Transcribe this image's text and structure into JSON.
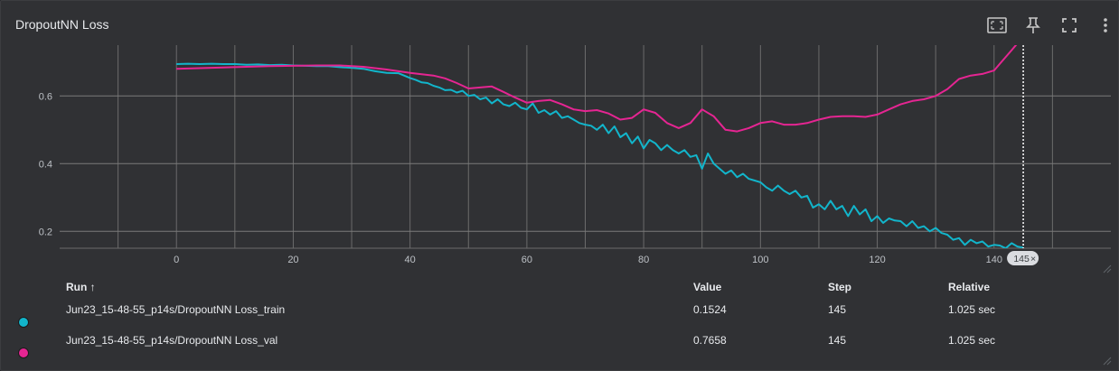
{
  "panel": {
    "title": "DropoutNN Loss",
    "toolbar": {
      "fit_icon": "fit-domain-icon",
      "pin_icon": "pin-icon",
      "fullscreen_icon": "fullscreen-icon",
      "more_icon": "more-vert-icon"
    }
  },
  "hover": {
    "step_label": "145",
    "close_glyph": "×"
  },
  "table": {
    "headers": {
      "run": "Run ↑",
      "value": "Value",
      "step": "Step",
      "relative": "Relative"
    },
    "rows": [
      {
        "color": "#12b5cb",
        "run": "Jun23_15-48-55_p14s/DropoutNN Loss_train",
        "value": "0.1524",
        "step": "145",
        "relative": "1.025 sec"
      },
      {
        "color": "#e52592",
        "run": "Jun23_15-48-55_p14s/DropoutNN Loss_val",
        "value": "0.7658",
        "step": "145",
        "relative": "1.025 sec"
      }
    ]
  },
  "chart_data": {
    "type": "line",
    "xlabel": "",
    "ylabel": "",
    "xlim": [
      -20,
      160
    ],
    "ylim": [
      0.15,
      0.75
    ],
    "xticks": [
      0,
      20,
      40,
      60,
      80,
      100,
      120,
      140
    ],
    "yticks": [
      0.2,
      0.4,
      0.6
    ],
    "grid": true,
    "hover_step": 145,
    "series": [
      {
        "name": "Jun23_15-48-55_p14s/DropoutNN Loss_train",
        "color": "#12b5cb",
        "points": [
          [
            0,
            0.694
          ],
          [
            2,
            0.695
          ],
          [
            4,
            0.694
          ],
          [
            6,
            0.695
          ],
          [
            8,
            0.694
          ],
          [
            10,
            0.694
          ],
          [
            12,
            0.692
          ],
          [
            14,
            0.693
          ],
          [
            16,
            0.691
          ],
          [
            18,
            0.692
          ],
          [
            20,
            0.69
          ],
          [
            22,
            0.689
          ],
          [
            24,
            0.688
          ],
          [
            26,
            0.688
          ],
          [
            28,
            0.685
          ],
          [
            30,
            0.683
          ],
          [
            32,
            0.68
          ],
          [
            34,
            0.673
          ],
          [
            36,
            0.668
          ],
          [
            38,
            0.667
          ],
          [
            40,
            0.653
          ],
          [
            41,
            0.647
          ],
          [
            42,
            0.64
          ],
          [
            43,
            0.638
          ],
          [
            44,
            0.63
          ],
          [
            45,
            0.625
          ],
          [
            46,
            0.617
          ],
          [
            47,
            0.618
          ],
          [
            48,
            0.61
          ],
          [
            49,
            0.615
          ],
          [
            50,
            0.6
          ],
          [
            51,
            0.603
          ],
          [
            52,
            0.59
          ],
          [
            53,
            0.595
          ],
          [
            54,
            0.578
          ],
          [
            55,
            0.59
          ],
          [
            56,
            0.575
          ],
          [
            57,
            0.57
          ],
          [
            58,
            0.58
          ],
          [
            59,
            0.565
          ],
          [
            60,
            0.56
          ],
          [
            61,
            0.578
          ],
          [
            62,
            0.55
          ],
          [
            63,
            0.558
          ],
          [
            64,
            0.545
          ],
          [
            65,
            0.555
          ],
          [
            66,
            0.535
          ],
          [
            67,
            0.54
          ],
          [
            68,
            0.53
          ],
          [
            69,
            0.52
          ],
          [
            70,
            0.515
          ],
          [
            71,
            0.512
          ],
          [
            72,
            0.5
          ],
          [
            73,
            0.515
          ],
          [
            74,
            0.49
          ],
          [
            75,
            0.51
          ],
          [
            76,
            0.478
          ],
          [
            77,
            0.49
          ],
          [
            78,
            0.46
          ],
          [
            79,
            0.48
          ],
          [
            80,
            0.445
          ],
          [
            81,
            0.47
          ],
          [
            82,
            0.46
          ],
          [
            83,
            0.44
          ],
          [
            84,
            0.455
          ],
          [
            85,
            0.44
          ],
          [
            86,
            0.43
          ],
          [
            87,
            0.44
          ],
          [
            88,
            0.42
          ],
          [
            89,
            0.425
          ],
          [
            90,
            0.385
          ],
          [
            91,
            0.43
          ],
          [
            92,
            0.4
          ],
          [
            93,
            0.385
          ],
          [
            94,
            0.37
          ],
          [
            95,
            0.38
          ],
          [
            96,
            0.36
          ],
          [
            97,
            0.37
          ],
          [
            98,
            0.355
          ],
          [
            99,
            0.35
          ],
          [
            100,
            0.345
          ],
          [
            101,
            0.33
          ],
          [
            102,
            0.32
          ],
          [
            103,
            0.335
          ],
          [
            104,
            0.32
          ],
          [
            105,
            0.31
          ],
          [
            106,
            0.32
          ],
          [
            107,
            0.3
          ],
          [
            108,
            0.305
          ],
          [
            109,
            0.27
          ],
          [
            110,
            0.28
          ],
          [
            111,
            0.265
          ],
          [
            112,
            0.29
          ],
          [
            113,
            0.265
          ],
          [
            114,
            0.275
          ],
          [
            115,
            0.245
          ],
          [
            116,
            0.275
          ],
          [
            117,
            0.25
          ],
          [
            118,
            0.265
          ],
          [
            119,
            0.23
          ],
          [
            120,
            0.245
          ],
          [
            121,
            0.225
          ],
          [
            122,
            0.238
          ],
          [
            123,
            0.232
          ],
          [
            124,
            0.23
          ],
          [
            125,
            0.215
          ],
          [
            126,
            0.23
          ],
          [
            127,
            0.21
          ],
          [
            128,
            0.215
          ],
          [
            129,
            0.2
          ],
          [
            130,
            0.21
          ],
          [
            131,
            0.195
          ],
          [
            132,
            0.19
          ],
          [
            133,
            0.175
          ],
          [
            134,
            0.18
          ],
          [
            135,
            0.16
          ],
          [
            136,
            0.175
          ],
          [
            137,
            0.165
          ],
          [
            138,
            0.17
          ],
          [
            139,
            0.155
          ],
          [
            140,
            0.16
          ],
          [
            141,
            0.158
          ],
          [
            142,
            0.15
          ],
          [
            143,
            0.165
          ],
          [
            144,
            0.155
          ],
          [
            145,
            0.152
          ]
        ]
      },
      {
        "name": "Jun23_15-48-55_p14s/DropoutNN Loss_val",
        "color": "#e52592",
        "points": [
          [
            0,
            0.68
          ],
          [
            4,
            0.682
          ],
          [
            8,
            0.684
          ],
          [
            12,
            0.686
          ],
          [
            16,
            0.688
          ],
          [
            20,
            0.689
          ],
          [
            24,
            0.69
          ],
          [
            28,
            0.69
          ],
          [
            32,
            0.686
          ],
          [
            36,
            0.678
          ],
          [
            40,
            0.668
          ],
          [
            42,
            0.664
          ],
          [
            44,
            0.66
          ],
          [
            46,
            0.652
          ],
          [
            48,
            0.638
          ],
          [
            50,
            0.622
          ],
          [
            52,
            0.625
          ],
          [
            54,
            0.628
          ],
          [
            56,
            0.612
          ],
          [
            58,
            0.595
          ],
          [
            60,
            0.58
          ],
          [
            62,
            0.585
          ],
          [
            64,
            0.588
          ],
          [
            66,
            0.575
          ],
          [
            68,
            0.56
          ],
          [
            70,
            0.555
          ],
          [
            72,
            0.558
          ],
          [
            74,
            0.548
          ],
          [
            76,
            0.53
          ],
          [
            78,
            0.535
          ],
          [
            80,
            0.56
          ],
          [
            82,
            0.55
          ],
          [
            84,
            0.52
          ],
          [
            86,
            0.505
          ],
          [
            88,
            0.52
          ],
          [
            90,
            0.56
          ],
          [
            92,
            0.54
          ],
          [
            94,
            0.5
          ],
          [
            96,
            0.495
          ],
          [
            98,
            0.505
          ],
          [
            100,
            0.52
          ],
          [
            102,
            0.525
          ],
          [
            104,
            0.515
          ],
          [
            106,
            0.515
          ],
          [
            108,
            0.52
          ],
          [
            110,
            0.53
          ],
          [
            112,
            0.538
          ],
          [
            114,
            0.54
          ],
          [
            116,
            0.54
          ],
          [
            118,
            0.538
          ],
          [
            120,
            0.545
          ],
          [
            122,
            0.56
          ],
          [
            124,
            0.575
          ],
          [
            126,
            0.585
          ],
          [
            128,
            0.59
          ],
          [
            130,
            0.6
          ],
          [
            132,
            0.62
          ],
          [
            134,
            0.65
          ],
          [
            136,
            0.66
          ],
          [
            138,
            0.665
          ],
          [
            140,
            0.675
          ],
          [
            141,
            0.695
          ],
          [
            142,
            0.715
          ],
          [
            143,
            0.735
          ],
          [
            144,
            0.755
          ],
          [
            145,
            0.766
          ]
        ]
      }
    ]
  }
}
